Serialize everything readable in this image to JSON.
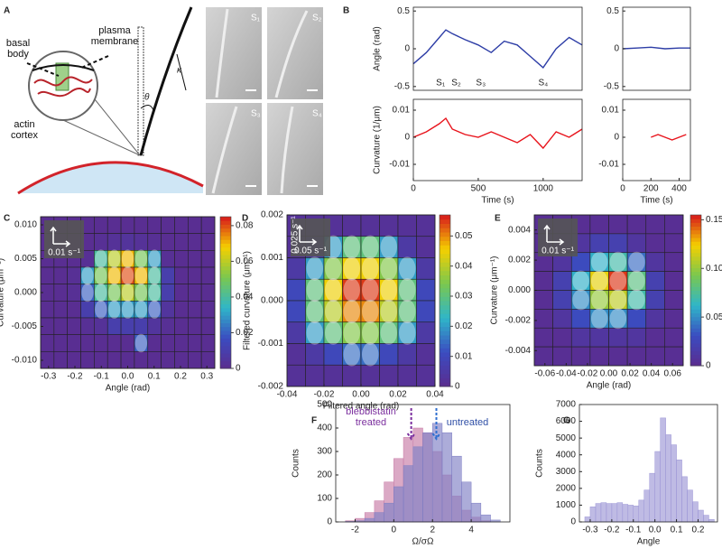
{
  "panel_labels": [
    "A",
    "B",
    "C",
    "D",
    "E",
    "F",
    "G"
  ],
  "schematic": {
    "labels": [
      "plasma membrane",
      "basal body",
      "actin cortex"
    ],
    "theta": "θ",
    "kappa": "κ",
    "images": [
      "S₁",
      "S₂",
      "S₃",
      "S₄"
    ]
  },
  "chart_data": [
    {
      "type": "line",
      "ylabel": "Angle (rad)",
      "xlim": [
        0,
        1300
      ],
      "ylim": [
        -0.55,
        0.55
      ],
      "yticks": [
        -0.5,
        0,
        0.5
      ],
      "x": [
        0,
        100,
        200,
        250,
        300,
        400,
        500,
        600,
        700,
        800,
        900,
        1000,
        1100,
        1200,
        1300
      ],
      "series": [
        {
          "color": "#2d3da6",
          "values": [
            -0.2,
            -0.05,
            0.15,
            0.25,
            0.2,
            0.12,
            0.05,
            -0.05,
            0.1,
            0.05,
            -0.1,
            -0.25,
            0.0,
            0.15,
            0.05
          ]
        }
      ],
      "annotations": [
        {
          "text": "S₁",
          "x": 210
        },
        {
          "text": "S₂",
          "x": 330
        },
        {
          "text": "S₃",
          "x": 520
        },
        {
          "text": "S₄",
          "x": 1000
        }
      ]
    },
    {
      "type": "line",
      "xlim": [
        0,
        480
      ],
      "ylim": [
        -0.55,
        0.55
      ],
      "yticks": [
        -0.5,
        0,
        0.5
      ],
      "x": [
        0,
        100,
        200,
        300,
        400,
        480
      ],
      "series": [
        {
          "color": "#2d3da6",
          "values": [
            0.0,
            0.01,
            0.02,
            0.0,
            0.01,
            0.01
          ]
        }
      ]
    },
    {
      "type": "line",
      "xlabel": "Time (s)",
      "ylabel": "Curvature (1/μm)",
      "xlim": [
        0,
        1300
      ],
      "ylim": [
        -0.016,
        0.014
      ],
      "xticks": [
        0,
        500,
        1000
      ],
      "yticks": [
        -0.01,
        0,
        0.01
      ],
      "x": [
        0,
        100,
        200,
        250,
        300,
        400,
        500,
        600,
        700,
        800,
        900,
        1000,
        1100,
        1200,
        1300
      ],
      "series": [
        {
          "color": "#e8141c",
          "values": [
            0.0,
            0.002,
            0.005,
            0.007,
            0.003,
            0.001,
            0.0,
            0.002,
            0.0,
            -0.002,
            0.001,
            -0.004,
            0.002,
            0.0,
            0.003
          ]
        }
      ]
    },
    {
      "type": "line",
      "xlabel": "Time (s)",
      "xlim": [
        0,
        480
      ],
      "ylim": [
        -0.016,
        0.014
      ],
      "xticks": [
        0,
        200,
        400
      ],
      "yticks": [
        -0.01,
        0,
        0.01
      ],
      "x": [
        200,
        250,
        300,
        350,
        400,
        450
      ],
      "series": [
        {
          "color": "#e8141c",
          "values": [
            0.0,
            0.001,
            0.0,
            -0.001,
            0.0,
            0.001
          ]
        }
      ]
    },
    {
      "type": "heatmap",
      "xlabel": "Angle (rad)",
      "ylabel": "Curvature (μm⁻¹)",
      "scale_labels": [
        "0.01 s⁻¹"
      ],
      "xlim": [
        -0.33,
        0.33
      ],
      "ylim": [
        -0.0112,
        0.0112
      ],
      "xticks": [
        -0.3,
        -0.2,
        -0.1,
        {
          "value": 0,
          "label": "0.0"
        },
        0.1,
        0.2,
        0.3
      ],
      "yticks": [
        {
          "value": 0.01,
          "label": "0.010"
        },
        0.005,
        {
          "value": 0,
          "label": "0.000"
        },
        -0.005,
        {
          "value": -0.01,
          "label": "-0.010"
        }
      ],
      "clim": [
        0,
        0.085
      ],
      "cticks": [
        0,
        0.02,
        0.04,
        0.06,
        0.08
      ],
      "z": [
        [
          0.001,
          0.001,
          0.001,
          0.001,
          0.001,
          0.001,
          0.001,
          0.001,
          0.001,
          0.001,
          0.001,
          0.001,
          0.001
        ],
        [
          0.001,
          0.001,
          0.001,
          0.001,
          0.002,
          0.003,
          0.004,
          0.003,
          0.002,
          0.001,
          0.001,
          0.001,
          0.001
        ],
        [
          0.001,
          0.001,
          0.001,
          0.002,
          0.04,
          0.06,
          0.07,
          0.05,
          0.03,
          0.002,
          0.001,
          0.001,
          0.001
        ],
        [
          0.001,
          0.001,
          0.002,
          0.03,
          0.05,
          0.07,
          0.08,
          0.07,
          0.04,
          0.01,
          0.001,
          0.001,
          0.001
        ],
        [
          0.001,
          0.001,
          0.002,
          0.02,
          0.04,
          0.05,
          0.06,
          0.05,
          0.04,
          0.01,
          0.001,
          0.001,
          0.001
        ],
        [
          0.001,
          0.001,
          0.001,
          0.01,
          0.02,
          0.03,
          0.03,
          0.03,
          0.02,
          0.005,
          0.001,
          0.001,
          0.001
        ],
        [
          0.001,
          0.001,
          0.001,
          0.002,
          0.003,
          0.01,
          0.01,
          0.01,
          0.005,
          0.002,
          0.001,
          0.001,
          0.001
        ],
        [
          0.001,
          0.001,
          0.001,
          0.001,
          0.001,
          0.001,
          0.001,
          0.02,
          0.001,
          0.001,
          0.001,
          0.001,
          0.001
        ],
        [
          0.001,
          0.001,
          0.001,
          0.001,
          0.001,
          0.001,
          0.001,
          0.001,
          0.001,
          0.001,
          0.001,
          0.001,
          0.001
        ]
      ]
    },
    {
      "type": "heatmap",
      "xlabel": "Filtered angle (rad)",
      "ylabel": "Filtered curvature (μm⁻¹)",
      "scale_labels": [
        "0.025 s⁻¹",
        "0.05 s⁻¹"
      ],
      "xlim": [
        -0.04,
        0.04
      ],
      "ylim": [
        -0.002,
        0.002
      ],
      "xticks": [
        -0.04,
        -0.02,
        {
          "value": 0,
          "label": "0.00"
        },
        0.02,
        0.04
      ],
      "yticks": [
        0.002,
        0.001,
        {
          "value": 0,
          "label": "0.000"
        },
        -0.001,
        -0.002
      ],
      "clim": [
        0,
        0.057
      ],
      "cticks": [
        0,
        0.01,
        0.02,
        0.03,
        0.04,
        0.05
      ],
      "z": [
        [
          0.002,
          0.002,
          0.002,
          0.002,
          0.002,
          0.002,
          0.002,
          0.002
        ],
        [
          0.002,
          0.005,
          0.02,
          0.03,
          0.03,
          0.02,
          0.005,
          0.002
        ],
        [
          0.005,
          0.02,
          0.035,
          0.045,
          0.045,
          0.035,
          0.02,
          0.005
        ],
        [
          0.01,
          0.03,
          0.045,
          0.055,
          0.055,
          0.045,
          0.03,
          0.01
        ],
        [
          0.01,
          0.03,
          0.04,
          0.05,
          0.05,
          0.04,
          0.03,
          0.01
        ],
        [
          0.005,
          0.02,
          0.03,
          0.035,
          0.035,
          0.03,
          0.02,
          0.005
        ],
        [
          0.002,
          0.005,
          0.01,
          0.015,
          0.015,
          0.01,
          0.005,
          0.002
        ],
        [
          0.002,
          0.002,
          0.002,
          0.002,
          0.002,
          0.002,
          0.002,
          0.002
        ]
      ]
    },
    {
      "type": "heatmap",
      "xlabel": "Angle (rad)",
      "ylabel": "Curvature (μm⁻¹)",
      "scale_labels": [
        "0.01 s⁻¹"
      ],
      "xlim": [
        -0.07,
        0.07
      ],
      "ylim": [
        -0.005,
        0.005
      ],
      "xticks": [
        -0.06,
        -0.04,
        -0.02,
        {
          "value": 0,
          "label": "0.00"
        },
        0.02,
        0.04,
        0.06
      ],
      "yticks": [
        0.004,
        0.002,
        {
          "value": 0,
          "label": "0.000"
        },
        -0.002,
        -0.004
      ],
      "clim": [
        0,
        0.155
      ],
      "cticks": [
        0,
        0.05,
        {
          "value": 0.1,
          "label": "0.10"
        },
        0.15
      ],
      "z": [
        [
          0.003,
          0.003,
          0.003,
          0.003,
          0.003,
          0.003,
          0.003,
          0.003
        ],
        [
          0.003,
          0.003,
          0.01,
          0.02,
          0.02,
          0.01,
          0.003,
          0.003
        ],
        [
          0.003,
          0.01,
          0.03,
          0.06,
          0.07,
          0.04,
          0.01,
          0.003
        ],
        [
          0.003,
          0.02,
          0.06,
          0.12,
          0.15,
          0.08,
          0.02,
          0.003
        ],
        [
          0.003,
          0.02,
          0.05,
          0.1,
          0.11,
          0.07,
          0.02,
          0.003
        ],
        [
          0.003,
          0.01,
          0.03,
          0.05,
          0.05,
          0.03,
          0.01,
          0.003
        ],
        [
          0.003,
          0.003,
          0.01,
          0.01,
          0.01,
          0.01,
          0.003,
          0.003
        ],
        [
          0.003,
          0.003,
          0.003,
          0.003,
          0.003,
          0.003,
          0.003,
          0.003
        ]
      ]
    },
    {
      "type": "histogram",
      "xlabel": "Ω/σΩ",
      "ylabel": "Counts",
      "xlim": [
        -3,
        6
      ],
      "ylim": [
        0,
        500
      ],
      "xticks": [
        -2,
        0,
        2,
        4
      ],
      "yticks": [
        0,
        100,
        200,
        300,
        400,
        500
      ],
      "bins": [
        -2.5,
        -2,
        -1.5,
        -1,
        -0.5,
        0,
        0.5,
        1,
        1.5,
        2,
        2.5,
        3,
        3.5,
        4,
        4.5,
        5,
        5.5
      ],
      "series": [
        {
          "name": "blebbistatin treated",
          "color": "#c77ba6",
          "values": [
            5,
            15,
            40,
            90,
            170,
            270,
            360,
            400,
            380,
            300,
            200,
            110,
            50,
            20,
            5,
            0
          ]
        },
        {
          "name": "untreated",
          "color": "#7f7fc4",
          "values": [
            2,
            5,
            15,
            40,
            80,
            150,
            240,
            320,
            380,
            420,
            380,
            280,
            170,
            80,
            30,
            8
          ]
        }
      ],
      "markers": [
        {
          "x": 0.9,
          "color": "#7b2f9e"
        },
        {
          "x": 2.2,
          "color": "#2f6fd0"
        }
      ]
    },
    {
      "type": "histogram",
      "xlabel": "Angle",
      "ylabel": "Counts",
      "xlim": [
        -0.35,
        0.29
      ],
      "ylim": [
        0,
        7000
      ],
      "xticks": [
        -0.3,
        -0.2,
        -0.1,
        {
          "value": 0,
          "label": "0.0"
        },
        0.1,
        0.2
      ],
      "yticks": [
        0,
        1000,
        2000,
        3000,
        4000,
        5000,
        6000,
        7000
      ],
      "bins": [
        -0.325,
        -0.3,
        -0.275,
        -0.25,
        -0.225,
        -0.2,
        -0.175,
        -0.15,
        -0.125,
        -0.1,
        -0.075,
        -0.05,
        -0.025,
        0,
        0.025,
        0.05,
        0.075,
        0.1,
        0.125,
        0.15,
        0.175,
        0.2,
        0.225,
        0.25,
        0.275
      ],
      "series": [
        {
          "color": "#9d97d6",
          "values": [
            300,
            900,
            1100,
            1150,
            1100,
            1100,
            1150,
            1050,
            1000,
            950,
            1300,
            1900,
            2900,
            4200,
            6200,
            5200,
            4600,
            3700,
            2700,
            1900,
            1200,
            700,
            400,
            150
          ]
        }
      ]
    }
  ]
}
